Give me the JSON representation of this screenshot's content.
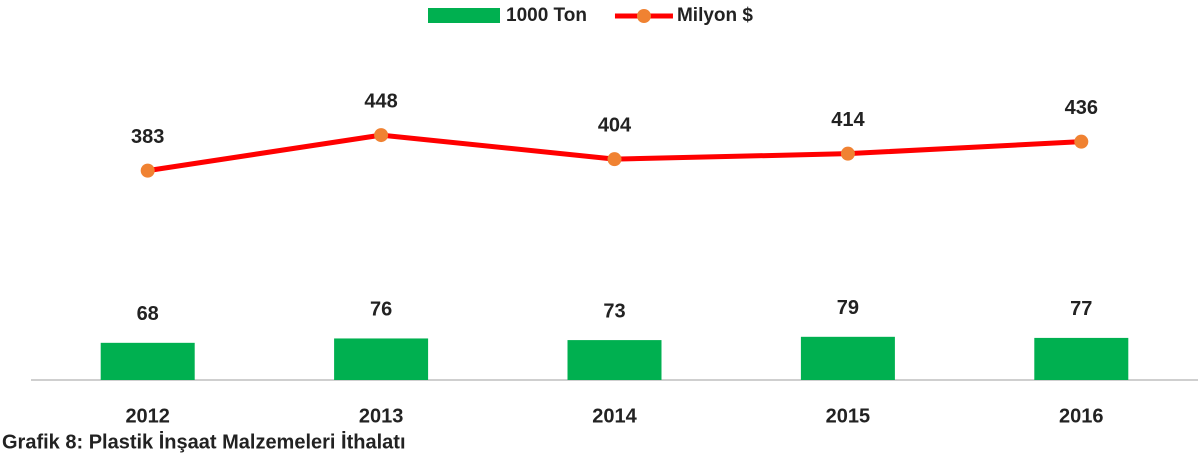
{
  "chart_data": {
    "type": "bar",
    "caption": "Grafik 8: Plastik İnşaat Malzemeleri İthalatı",
    "categories": [
      "2012",
      "2013",
      "2014",
      "2015",
      "2016"
    ],
    "series": [
      {
        "name": "1000 Ton",
        "type": "bar",
        "color": "#00b050",
        "values": [
          68,
          76,
          73,
          79,
          77
        ]
      },
      {
        "name": "Milyon $",
        "type": "line",
        "color": "#ff0000",
        "marker_color": "#f08232",
        "values": [
          383,
          448,
          404,
          414,
          436
        ]
      }
    ],
    "ylim": [
      0,
      600
    ],
    "legend": "top"
  }
}
